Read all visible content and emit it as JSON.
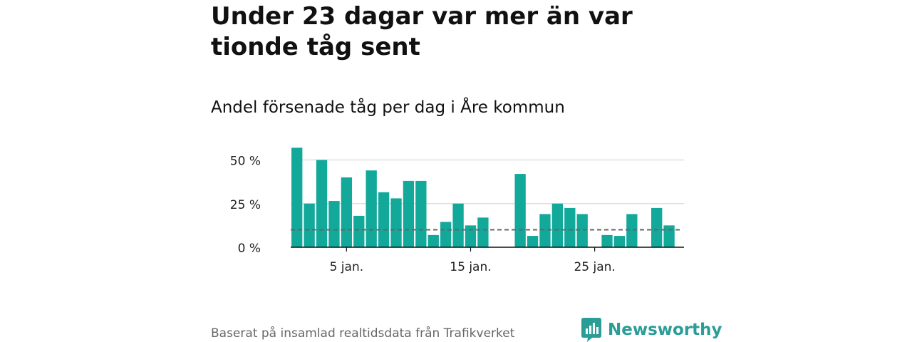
{
  "title": "Under 23 dagar var mer än var tionde tåg sent",
  "subtitle": "Andel försenade tåg per dag i Åre kommun",
  "source": "Baserat på insamlad realtidsdata från Trafikverket",
  "brand": {
    "name": "Newsworthy",
    "logo_icon": "newsworthy-logo-icon",
    "color": "#2a9d96"
  },
  "colors": {
    "bar": "#12a89a",
    "reference_line": "#666666",
    "grid": "#d9d9d9",
    "axis": "#111111"
  },
  "chart_data": {
    "type": "bar",
    "x_unit": "day of January",
    "x": [
      1,
      2,
      3,
      4,
      5,
      6,
      7,
      8,
      9,
      10,
      11,
      12,
      13,
      14,
      15,
      16,
      17,
      18,
      19,
      20,
      21,
      22,
      23,
      24,
      25,
      26,
      27,
      28,
      29,
      30,
      31
    ],
    "values": [
      57,
      25,
      50,
      26.5,
      40,
      18,
      44,
      31.5,
      28,
      38,
      38,
      7,
      14.5,
      25,
      12.5,
      17,
      0,
      0,
      42,
      6.5,
      19,
      25,
      22.5,
      19,
      0,
      7,
      6.5,
      19,
      0,
      22.5,
      12.5
    ],
    "ylim": [
      0,
      60
    ],
    "yticks": [
      0,
      25,
      50
    ],
    "ytick_labels": [
      "0 %",
      "25 %",
      "50 %"
    ],
    "xticks": [
      5,
      15,
      25
    ],
    "xtick_labels": [
      "5 jan.",
      "15 jan.",
      "25 jan."
    ],
    "reference_line": {
      "value": 10,
      "style": "dashed"
    },
    "grid": true,
    "legend": "none"
  }
}
